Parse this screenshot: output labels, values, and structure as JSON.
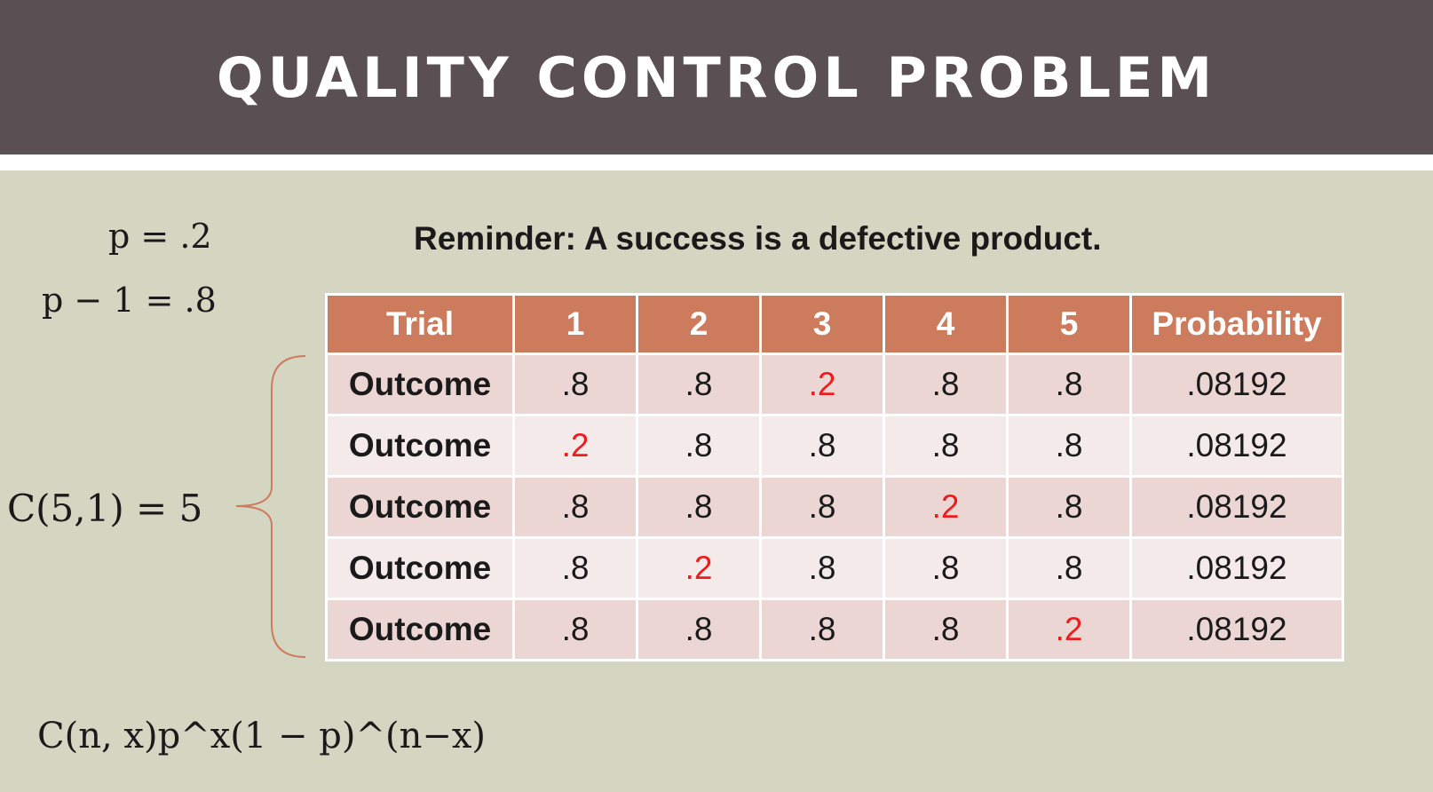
{
  "title": "QUALITY CONTROL PROBLEM",
  "reminder": "Reminder: A success is a defective product.",
  "formulas": {
    "p": "p = .2",
    "q": "p − 1 = .8",
    "combination": "C(5,1) = 5",
    "general": "C(n, x)p^x(1 − p)^(n−x)"
  },
  "table": {
    "headers": [
      "Trial",
      "1",
      "2",
      "3",
      "4",
      "5",
      "Probability"
    ],
    "rows": [
      {
        "label": "Outcome",
        "values": [
          ".8",
          ".8",
          ".2",
          ".8",
          ".8"
        ],
        "success_index": 2,
        "probability": ".08192"
      },
      {
        "label": "Outcome",
        "values": [
          ".2",
          ".8",
          ".8",
          ".8",
          ".8"
        ],
        "success_index": 0,
        "probability": ".08192"
      },
      {
        "label": "Outcome",
        "values": [
          ".8",
          ".8",
          ".8",
          ".2",
          ".8"
        ],
        "success_index": 3,
        "probability": ".08192"
      },
      {
        "label": "Outcome",
        "values": [
          ".8",
          ".2",
          ".8",
          ".8",
          ".8"
        ],
        "success_index": 1,
        "probability": ".08192"
      },
      {
        "label": "Outcome",
        "values": [
          ".8",
          ".8",
          ".8",
          ".8",
          ".2"
        ],
        "success_index": 4,
        "probability": ".08192"
      }
    ]
  },
  "colors": {
    "header_bg": "#5a5054",
    "slide_bg": "#d4d6c2",
    "table_header": "#cd7b5d",
    "highlight": "#ee1c1c",
    "brace": "#cd7b5d"
  }
}
